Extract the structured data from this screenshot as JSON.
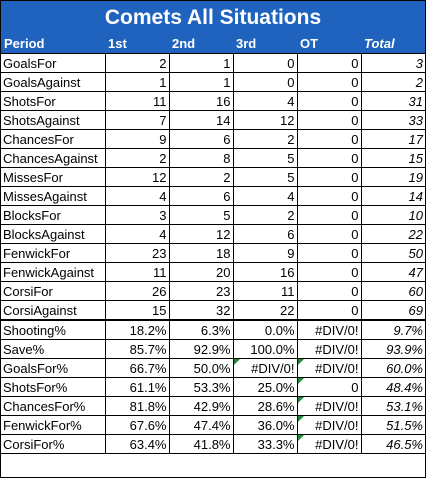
{
  "title": "Comets All Situations",
  "headers": [
    "Period",
    "1st",
    "2nd",
    "3rd",
    "OT",
    "Total"
  ],
  "rows": [
    {
      "label": "GoalsFor",
      "v": [
        "2",
        "1",
        "0",
        "0",
        "3"
      ]
    },
    {
      "label": "GoalsAgainst",
      "v": [
        "1",
        "1",
        "0",
        "0",
        "2"
      ]
    },
    {
      "label": "ShotsFor",
      "v": [
        "11",
        "16",
        "4",
        "0",
        "31"
      ]
    },
    {
      "label": "ShotsAgainst",
      "v": [
        "7",
        "14",
        "12",
        "0",
        "33"
      ]
    },
    {
      "label": "ChancesFor",
      "v": [
        "9",
        "6",
        "2",
        "0",
        "17"
      ]
    },
    {
      "label": "ChancesAgainst",
      "v": [
        "2",
        "8",
        "5",
        "0",
        "15"
      ]
    },
    {
      "label": "MissesFor",
      "v": [
        "12",
        "2",
        "5",
        "0",
        "19"
      ]
    },
    {
      "label": "MissesAgainst",
      "v": [
        "4",
        "6",
        "4",
        "0",
        "14"
      ]
    },
    {
      "label": "BlocksFor",
      "v": [
        "3",
        "5",
        "2",
        "0",
        "10"
      ]
    },
    {
      "label": "BlocksAgainst",
      "v": [
        "4",
        "12",
        "6",
        "0",
        "22"
      ]
    },
    {
      "label": "FenwickFor",
      "v": [
        "23",
        "18",
        "9",
        "0",
        "50"
      ]
    },
    {
      "label": "FenwickAgainst",
      "v": [
        "11",
        "20",
        "16",
        "0",
        "47"
      ]
    },
    {
      "label": "CorsiFor",
      "v": [
        "26",
        "23",
        "11",
        "0",
        "60"
      ]
    },
    {
      "label": "CorsiAgainst",
      "v": [
        "15",
        "32",
        "22",
        "0",
        "69"
      ]
    },
    {
      "label": "Shooting%",
      "v": [
        "18.2%",
        "6.3%",
        "0.0%",
        "#DIV/0!",
        "9.7%"
      ]
    },
    {
      "label": "Save%",
      "v": [
        "85.7%",
        "92.9%",
        "100.0%",
        "#DIV/0!",
        "93.9%"
      ]
    },
    {
      "label": "GoalsFor%",
      "v": [
        "66.7%",
        "50.0%",
        "#DIV/0!",
        "#DIV/0!",
        "60.0%"
      ]
    },
    {
      "label": "ShotsFor%",
      "v": [
        "61.1%",
        "53.3%",
        "25.0%",
        "0",
        "48.4%"
      ]
    },
    {
      "label": "ChancesFor%",
      "v": [
        "81.8%",
        "42.9%",
        "28.6%",
        "#DIV/0!",
        "53.1%"
      ]
    },
    {
      "label": "FenwickFor%",
      "v": [
        "67.6%",
        "47.4%",
        "36.0%",
        "#DIV/0!",
        "51.5%"
      ]
    },
    {
      "label": "CorsiFor%",
      "v": [
        "63.4%",
        "41.8%",
        "33.3%",
        "#DIV/0!",
        "46.5%"
      ]
    }
  ],
  "colors": {
    "header_bg": "#1f63be",
    "header_text": "#ffffff",
    "error_flag": "#1f8a3a"
  }
}
